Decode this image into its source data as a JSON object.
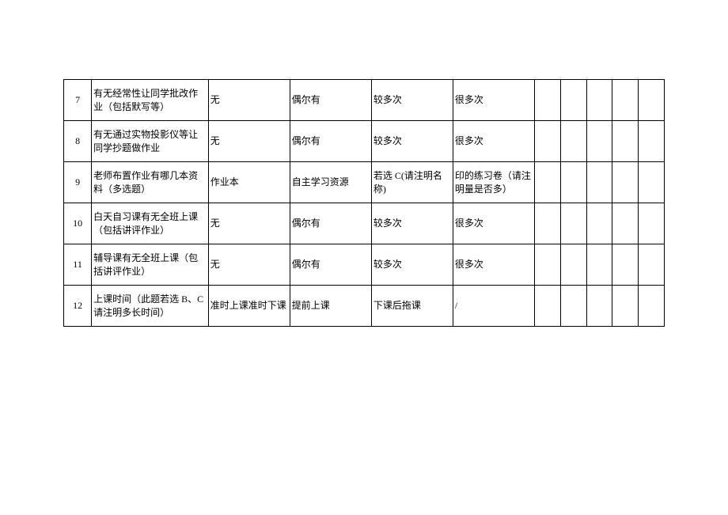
{
  "table": {
    "type": "table",
    "background_color": "#ffffff",
    "border_color": "#000000",
    "text_color": "#000000",
    "font_size": 12,
    "rows": [
      {
        "num": "7",
        "question": "有无经常性让同学批改作业（包括默写等）",
        "optA": "无",
        "optB": "偶尔有",
        "optC": "较多次",
        "optD": "很多次",
        "c5": "",
        "c6": "",
        "c7": "",
        "c8": "",
        "c9": ""
      },
      {
        "num": "8",
        "question": "有无通过实物投影仪等让同学抄题做作业",
        "optA": "无",
        "optB": "偶尔有",
        "optC": "较多次",
        "optD": "很多次",
        "c5": "",
        "c6": "",
        "c7": "",
        "c8": "",
        "c9": ""
      },
      {
        "num": "9",
        "question": "老师布置作业有哪几本资料（多选题）",
        "optA": "作业本",
        "optB": "自主学习资源",
        "optC": "若选 C(请注明名称)",
        "optD": "印的练习卷（请注明量是否多）",
        "c5": "",
        "c6": "",
        "c7": "",
        "c8": "",
        "c9": ""
      },
      {
        "num": "10",
        "question": "白天自习课有无全班上课（包括讲评作业）",
        "optA": "无",
        "optB": "偶尔有",
        "optC": "较多次",
        "optD": "很多次",
        "c5": "",
        "c6": "",
        "c7": "",
        "c8": "",
        "c9": ""
      },
      {
        "num": "11",
        "question": "辅导课有无全班上课（包括讲评作业）",
        "optA": "无",
        "optB": "偶尔有",
        "optC": "较多次",
        "optD": "很多次",
        "c5": "",
        "c6": "",
        "c7": "",
        "c8": "",
        "c9": ""
      },
      {
        "num": "12",
        "question": "上课时间（此题若选 B、C 请注明多长时间）",
        "optA": "准时上课准时下课",
        "optB": "提前上课",
        "optC": "下课后拖课",
        "optD": "/",
        "c5": "",
        "c6": "",
        "c7": "",
        "c8": "",
        "c9": ""
      }
    ]
  }
}
